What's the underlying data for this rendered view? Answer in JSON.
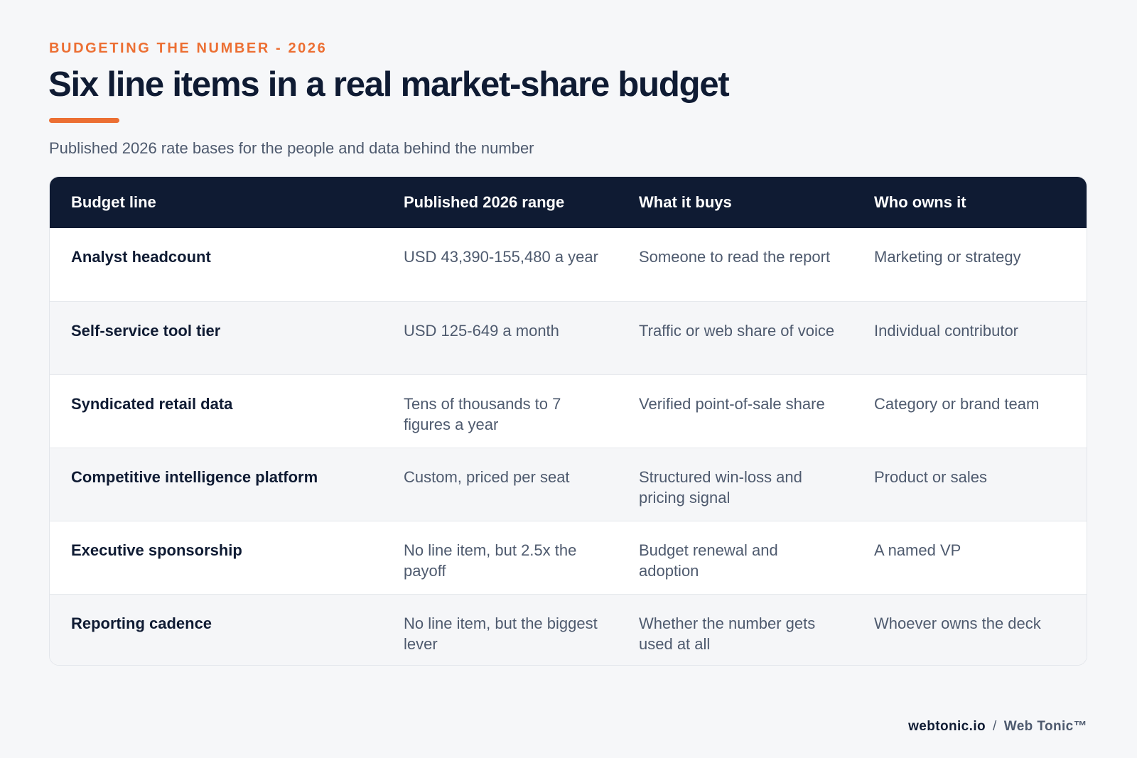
{
  "header": {
    "eyebrow": "BUDGETING THE NUMBER - 2026",
    "title": "Six line items in a real market-share budget",
    "subtitle": "Published 2026 rate bases for the people and data behind the number"
  },
  "table": {
    "columns": [
      "Budget line",
      "Published 2026 range",
      "What it buys",
      "Who owns it"
    ],
    "rows": [
      [
        "Analyst headcount",
        "USD 43,390-155,480 a year",
        "Someone to read the report",
        "Marketing or strategy"
      ],
      [
        "Self-service tool tier",
        "USD 125-649 a month",
        "Traffic or web share of voice",
        "Individual contributor"
      ],
      [
        "Syndicated retail data",
        "Tens of thousands to 7 figures a year",
        "Verified point-of-sale share",
        "Category or brand team"
      ],
      [
        "Competitive intelligence platform",
        "Custom, priced per seat",
        "Structured win-loss and pricing signal",
        "Product or sales"
      ],
      [
        "Executive sponsorship",
        "No line item, but 2.5x the payoff",
        "Budget renewal and adoption",
        "A named VP"
      ],
      [
        "Reporting cadence",
        "No line item, but the biggest lever",
        "Whether the number gets used at all",
        "Whoever owns the deck"
      ]
    ]
  },
  "footer": {
    "site": "webtonic.io",
    "separator": "/",
    "brand": "Web Tonic™"
  },
  "colors": {
    "accent": "#ec6f33",
    "navy": "#0f1b33",
    "muted_text": "#4e5a6e",
    "background": "#f6f7f9"
  }
}
